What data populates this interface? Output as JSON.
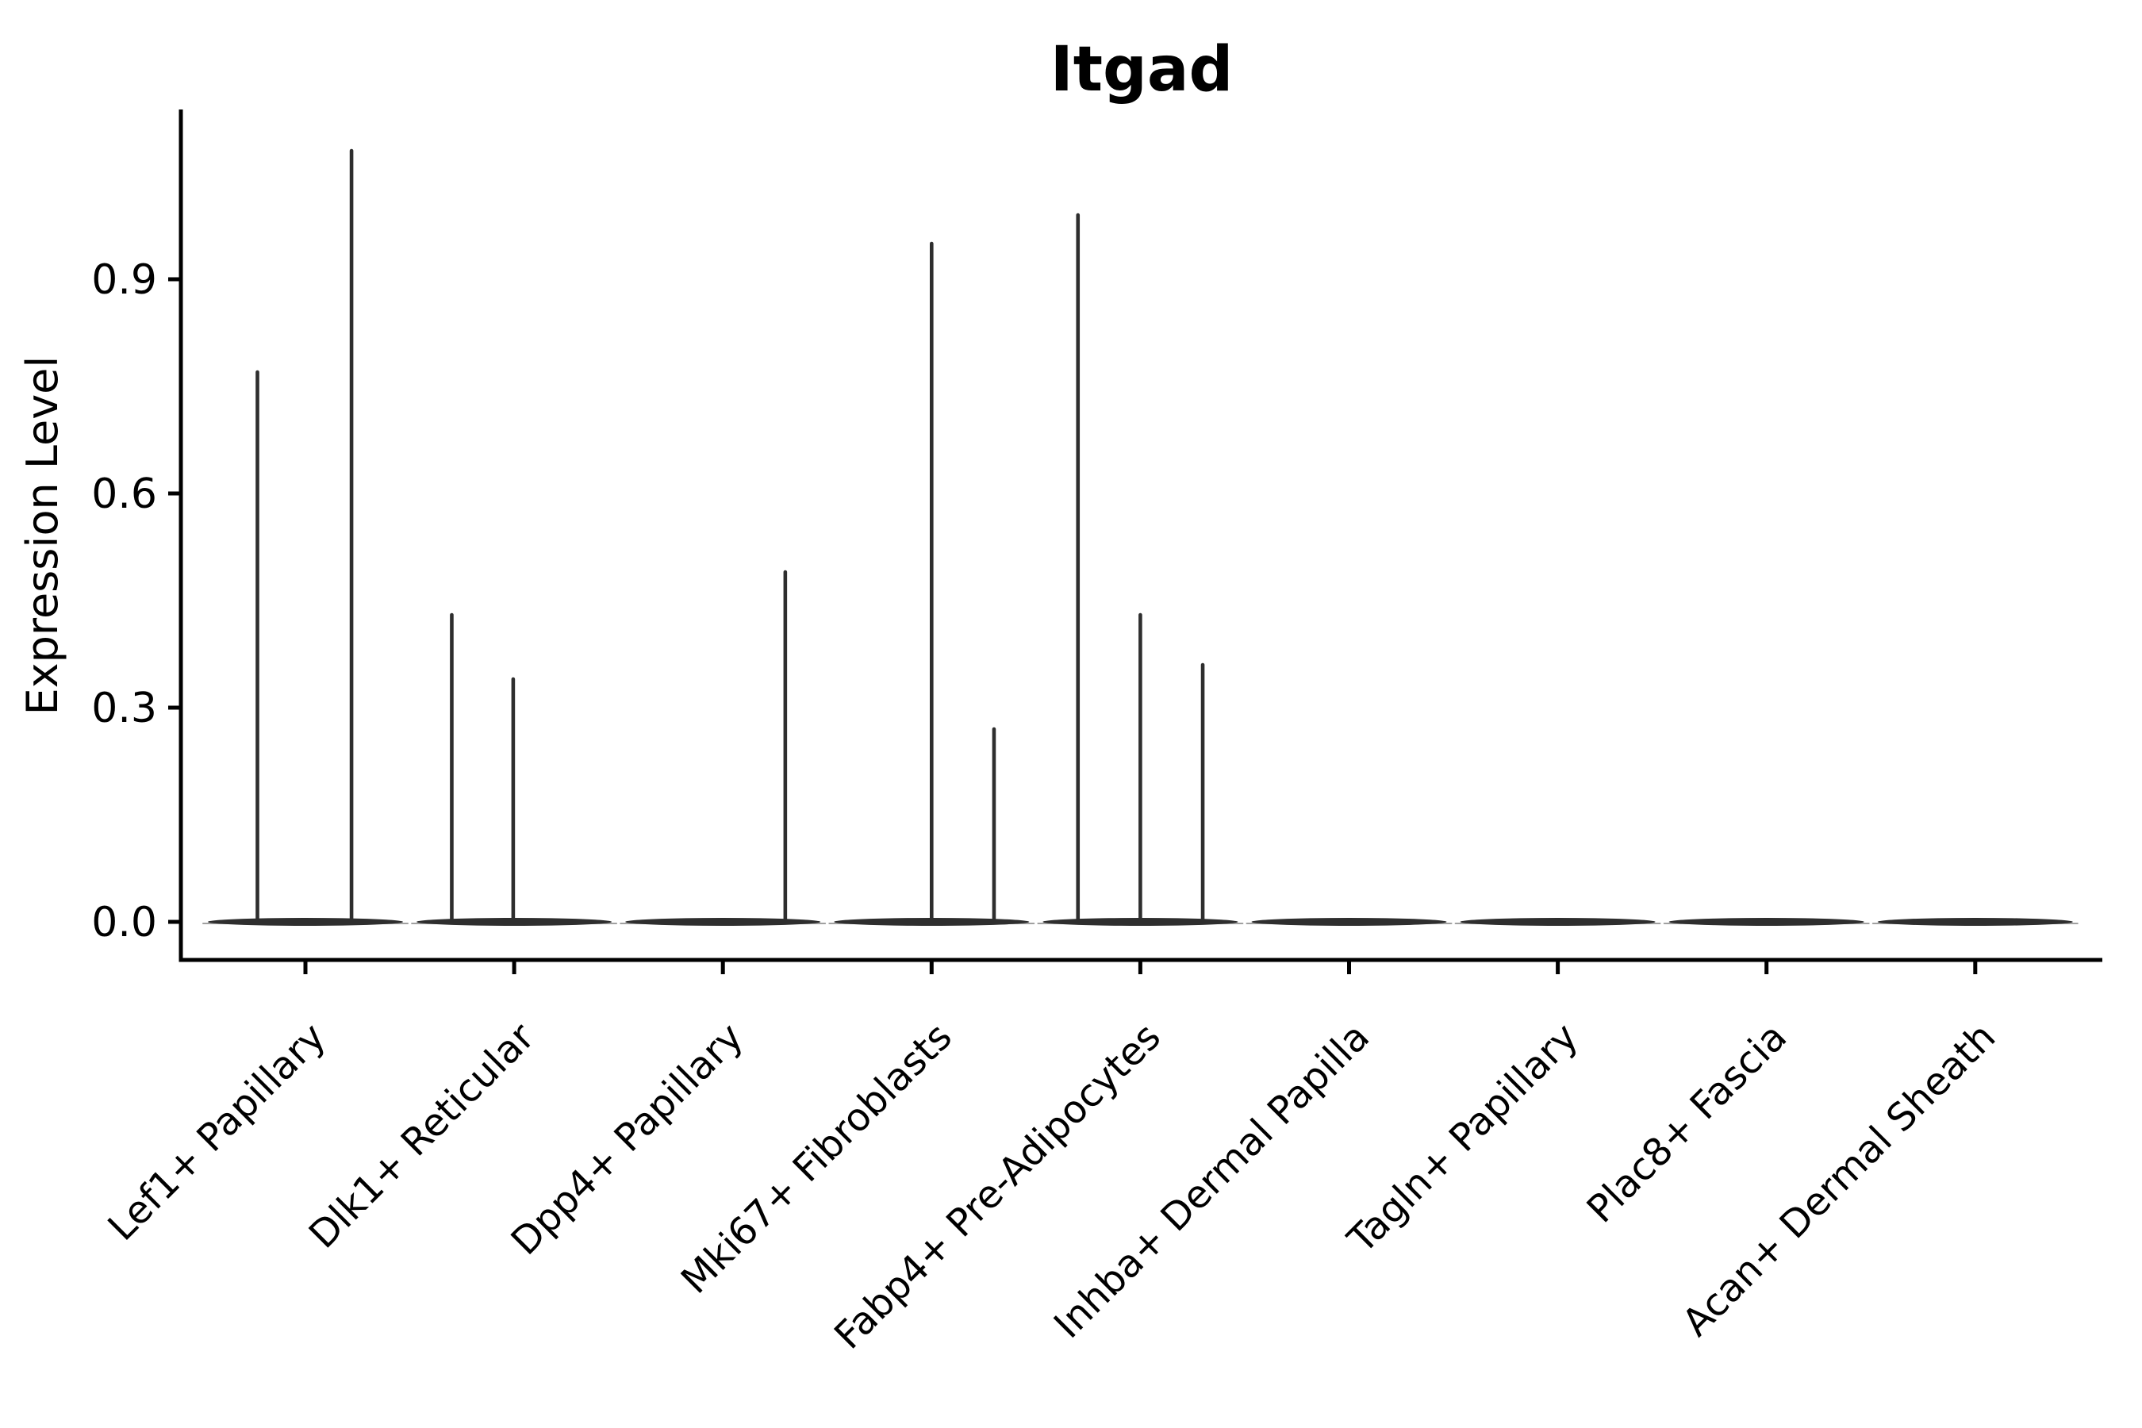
{
  "title": "Itgad",
  "ylabel": "Expression Level",
  "colors": {
    "violin": "#2e2e2e",
    "axis": "#000000",
    "text": "#000000",
    "background": "#ffffff"
  },
  "chart_data": {
    "type": "violin",
    "title": "Itgad",
    "xlabel": "",
    "ylabel": "Expression Level",
    "ylim": [
      0,
      1.14
    ],
    "yticks": [
      0.0,
      0.3,
      0.6,
      0.9
    ],
    "ytick_labels": [
      "0.0",
      "0.3",
      "0.6",
      "0.9"
    ],
    "grid": false,
    "legend": "none",
    "description": "Each category shows a flattened violin at expression 0 with thin density spikes rising to the maximum expression values; categories 6-9 are entirely at 0.",
    "categories": [
      {
        "label": "Lef1+ Papillary",
        "baseline_value": 0.0,
        "spikes": [
          {
            "offset_frac": -0.5,
            "value": 0.77
          },
          {
            "offset_frac": 0.48,
            "value": 1.08
          }
        ]
      },
      {
        "label": "Dlk1+ Reticular",
        "baseline_value": 0.0,
        "spikes": [
          {
            "offset_frac": -0.65,
            "value": 0.43
          },
          {
            "offset_frac": -0.01,
            "value": 0.34
          }
        ]
      },
      {
        "label": "Dpp4+ Papillary",
        "baseline_value": 0.0,
        "spikes": [
          {
            "offset_frac": 0.65,
            "value": 0.49
          }
        ]
      },
      {
        "label": "Mki67+ Fibroblasts",
        "baseline_value": 0.0,
        "spikes": [
          {
            "offset_frac": 0.0,
            "value": 0.95
          },
          {
            "offset_frac": 0.65,
            "value": 0.27
          }
        ]
      },
      {
        "label": "Fabp4+ Pre-Adipocytes",
        "baseline_value": 0.0,
        "spikes": [
          {
            "offset_frac": -0.65,
            "value": 0.99
          },
          {
            "offset_frac": 0.0,
            "value": 0.43
          },
          {
            "offset_frac": 0.65,
            "value": 0.36
          }
        ]
      },
      {
        "label": "Inhba+ Dermal Papilla",
        "baseline_value": 0.0,
        "spikes": []
      },
      {
        "label": "Tagln+ Papillary",
        "baseline_value": 0.0,
        "spikes": []
      },
      {
        "label": "Plac8+ Fascia",
        "baseline_value": 0.0,
        "spikes": []
      },
      {
        "label": "Acan+ Dermal Sheath",
        "baseline_value": 0.0,
        "spikes": []
      }
    ]
  }
}
